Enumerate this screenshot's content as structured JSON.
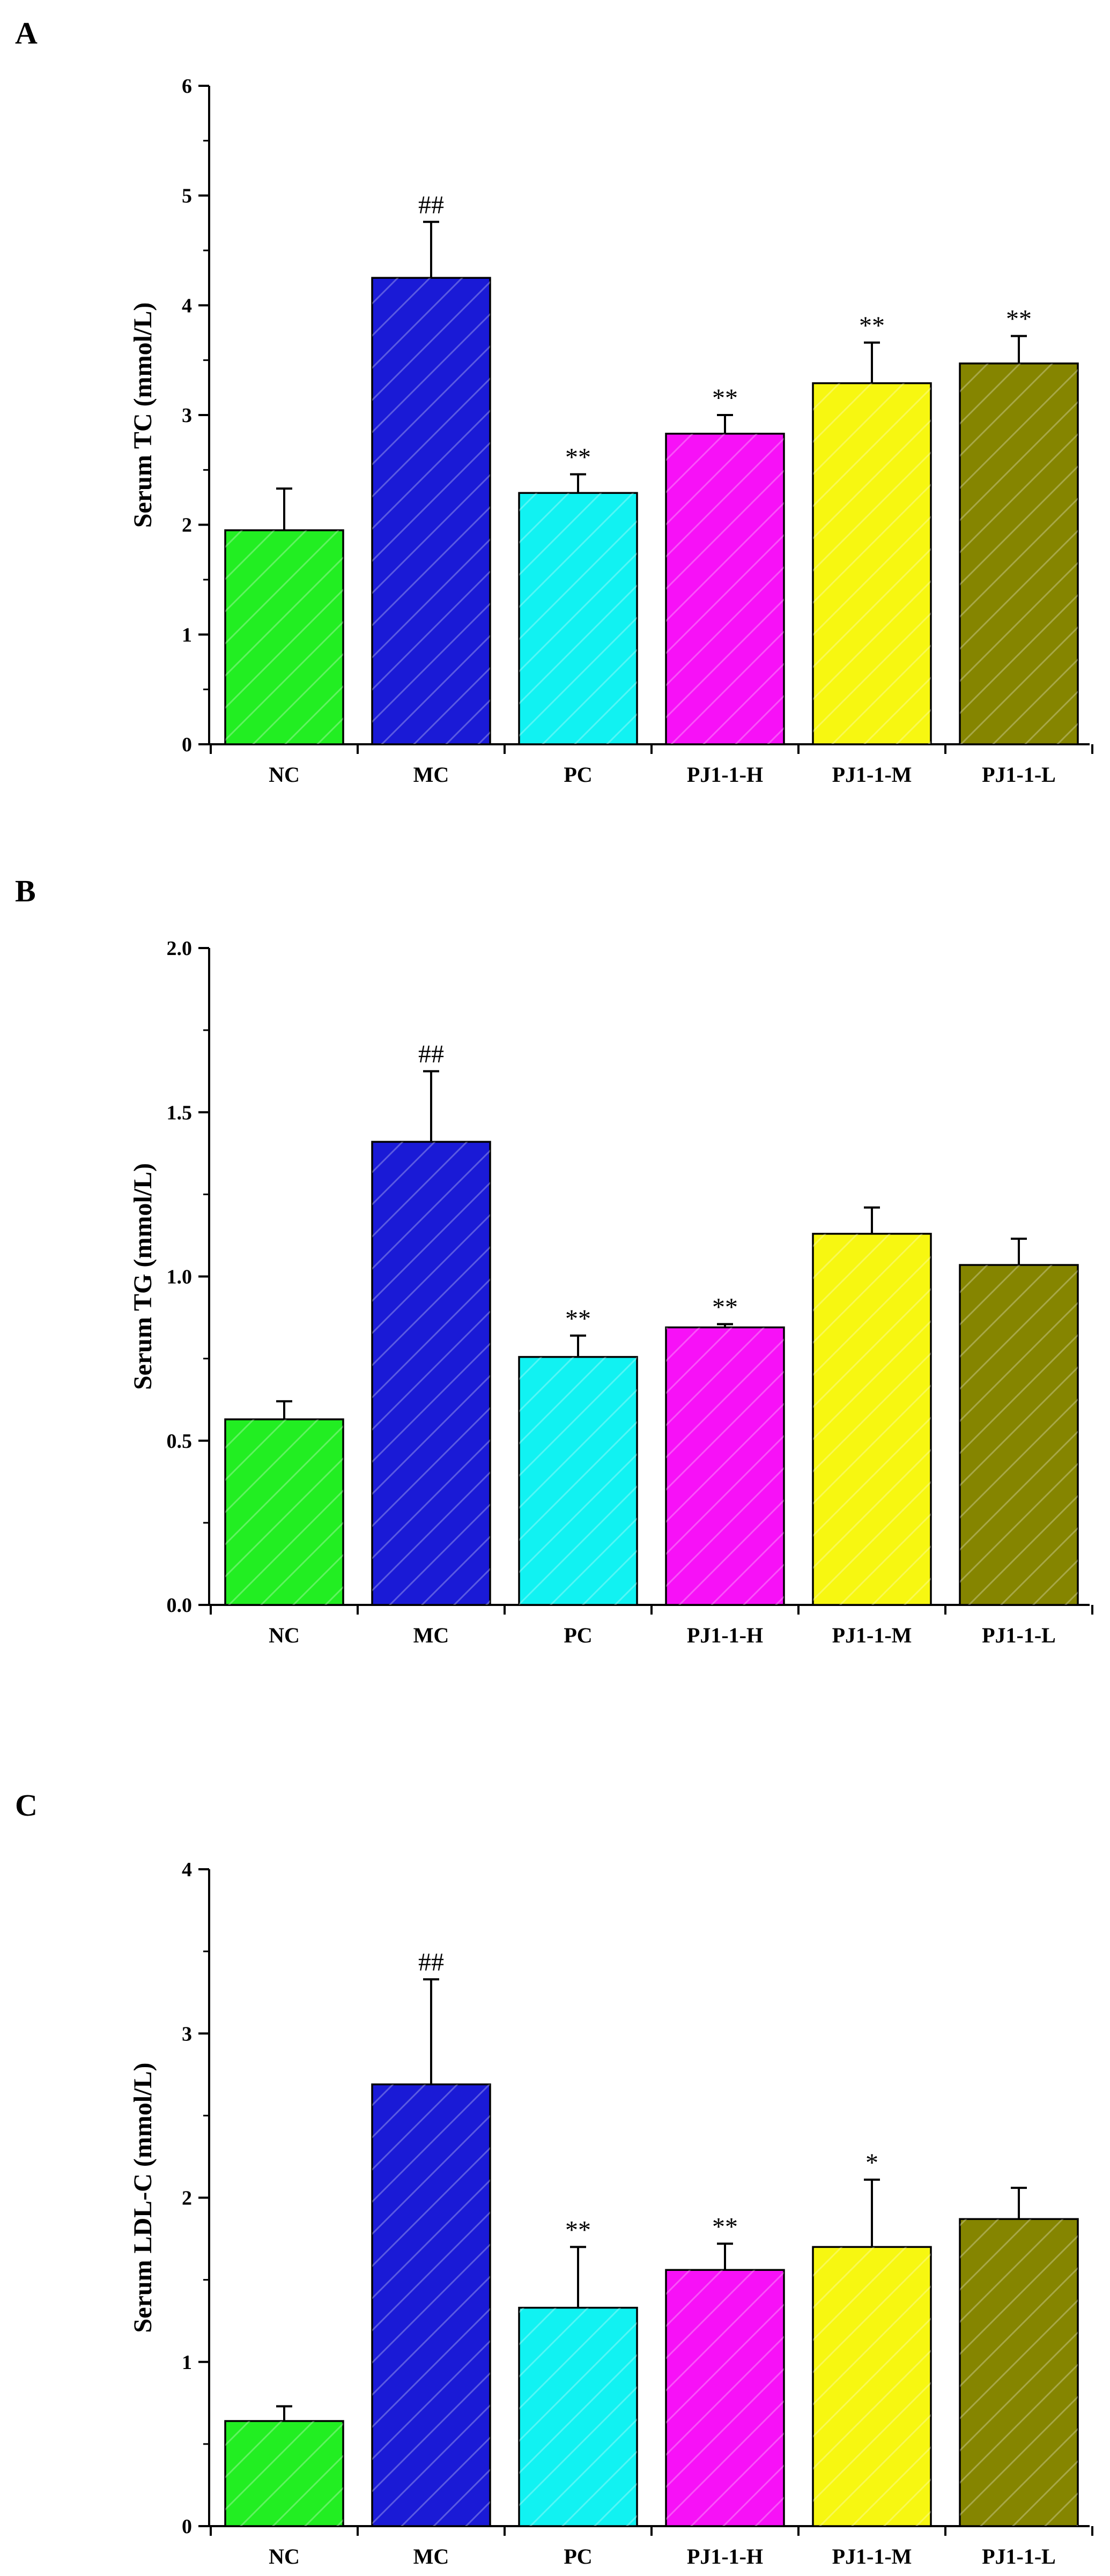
{
  "colors": {
    "NC": "#22ee22",
    "MC": "#1a1ad6",
    "PC": "#11f2f2",
    "PJ1-1-H": "#f711f7",
    "PJ1-1-M": "#f7f711",
    "PJ1-1-L": "#858500"
  },
  "chart_data": [
    {
      "type": "bar",
      "panel": "A",
      "ylabel": "Serum TC (mmol/L)",
      "categories": [
        "NC",
        "MC",
        "PC",
        "PJ1-1-H",
        "PJ1-1-M",
        "PJ1-1-L"
      ],
      "values": [
        1.95,
        4.25,
        2.29,
        2.83,
        3.29,
        3.47
      ],
      "errors": [
        0.38,
        0.51,
        0.17,
        0.17,
        0.37,
        0.25
      ],
      "annotations": [
        "",
        "##",
        "**",
        "**",
        "**",
        "**"
      ],
      "ylim": [
        0,
        6
      ],
      "yticks": [
        0,
        1,
        2,
        3,
        4,
        5,
        6
      ],
      "ytick_labels": [
        "0",
        "1",
        "2",
        "3",
        "4",
        "5",
        "6"
      ]
    },
    {
      "type": "bar",
      "panel": "B",
      "ylabel": "Serum TG (mmol/L)",
      "categories": [
        "NC",
        "MC",
        "PC",
        "PJ1-1-H",
        "PJ1-1-M",
        "PJ1-1-L"
      ],
      "values": [
        0.565,
        1.41,
        0.755,
        0.845,
        1.13,
        1.035
      ],
      "errors": [
        0.055,
        0.215,
        0.065,
        0.01,
        0.08,
        0.08
      ],
      "annotations": [
        "",
        "##",
        "**",
        "**",
        "",
        ""
      ],
      "ylim": [
        0,
        2
      ],
      "yticks": [
        0,
        0.5,
        1,
        1.5,
        2
      ],
      "ytick_labels": [
        "0.0",
        "0.5",
        "1.0",
        "1.5",
        "2.0"
      ]
    },
    {
      "type": "bar",
      "panel": "C",
      "ylabel": "Serum LDL-C (mmol/L)",
      "categories": [
        "NC",
        "MC",
        "PC",
        "PJ1-1-H",
        "PJ1-1-M",
        "PJ1-1-L"
      ],
      "values": [
        0.64,
        2.69,
        1.33,
        1.56,
        1.7,
        1.87
      ],
      "errors": [
        0.09,
        0.64,
        0.37,
        0.16,
        0.41,
        0.19
      ],
      "annotations": [
        "",
        "##",
        "**",
        "**",
        "*",
        ""
      ],
      "ylim": [
        0,
        4
      ],
      "yticks": [
        0,
        1,
        2,
        3,
        4
      ],
      "ytick_labels": [
        "0",
        "1",
        "2",
        "3",
        "4"
      ]
    }
  ]
}
